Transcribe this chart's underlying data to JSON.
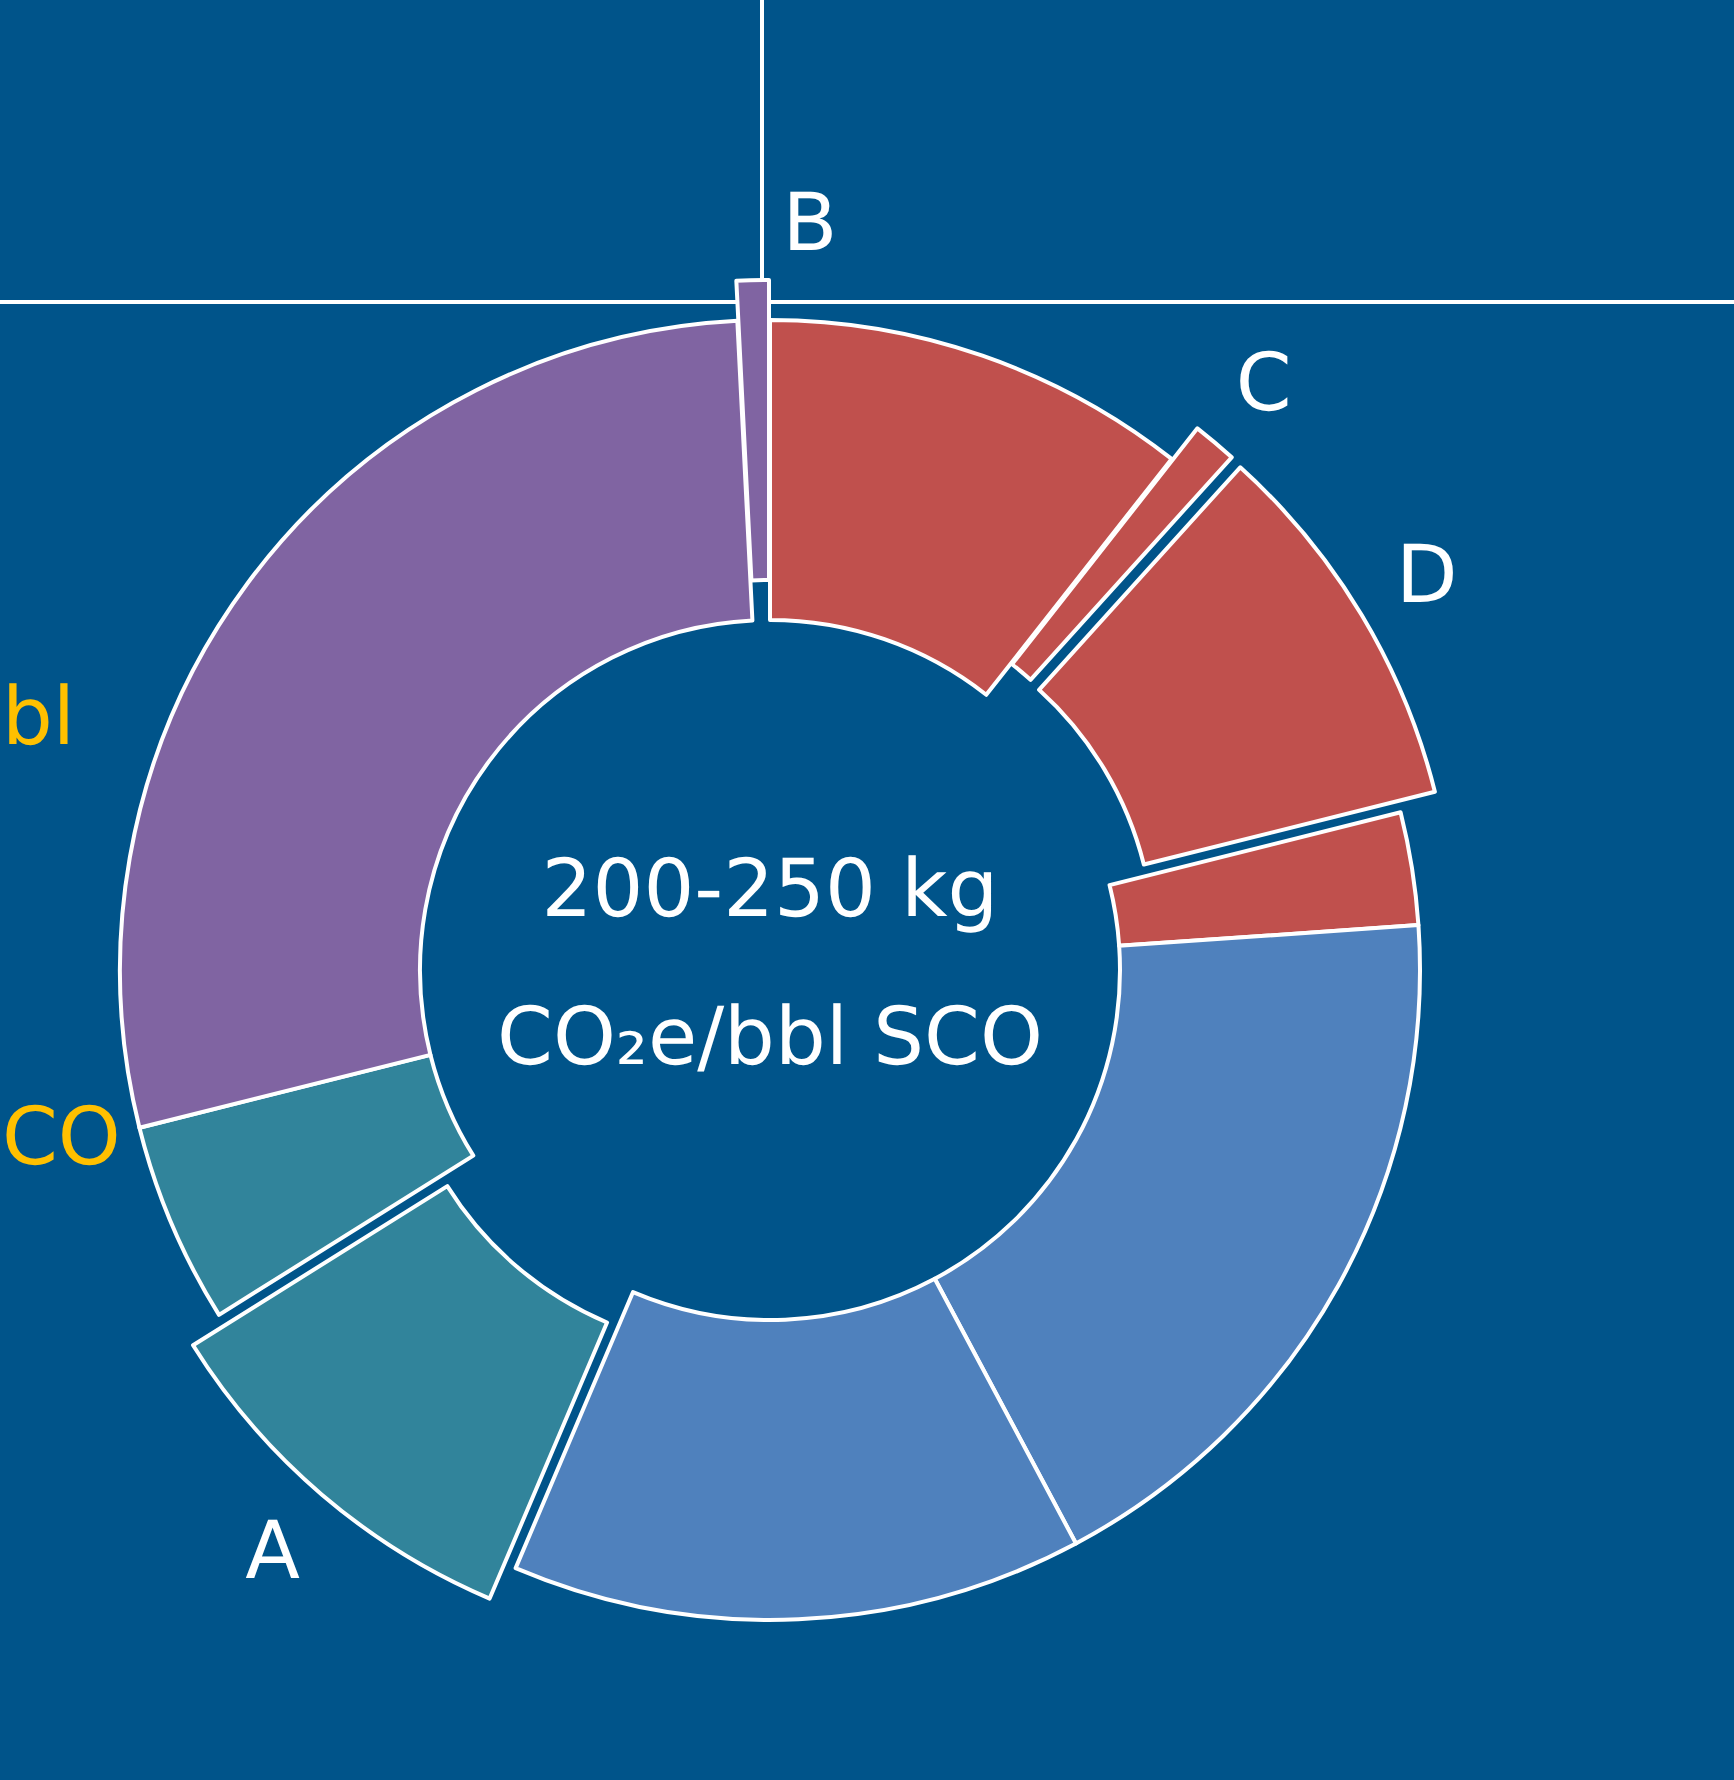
{
  "chart_data": {
    "type": "donut",
    "title": "200-250 kg",
    "subtitle": "CO₂e/bbl SCO",
    "categories": [
      null,
      "C",
      "D",
      null,
      null,
      null,
      "A",
      null,
      null,
      "B"
    ],
    "values": [
      10.6,
      1.1,
      9.4,
      2.8,
      18.3,
      14.2,
      9.7,
      5.0,
      28.1,
      0.8
    ],
    "colors": [
      "#c0504d",
      "#c0504d",
      "#c0504d",
      "#c0504d",
      "#4f81bd",
      "#4f81bd",
      "#31849b",
      "#31849b",
      "#8064a2",
      "#8064a2"
    ],
    "annotations": [
      "bl",
      "CO"
    ]
  }
}
